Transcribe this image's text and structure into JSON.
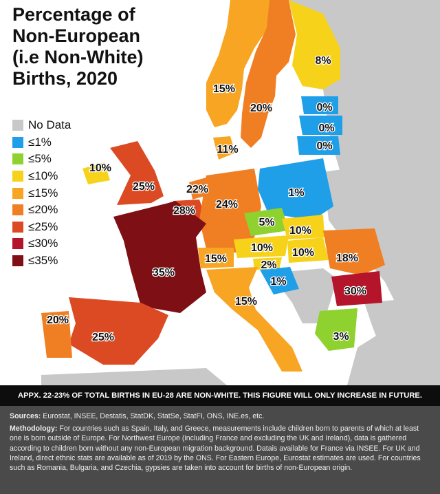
{
  "map": {
    "title_lines": [
      "Percentage of",
      "Non-European",
      "(i.e Non-White)",
      "Births, 2020"
    ],
    "legend": [
      {
        "label": "No Data",
        "color": "#c8c8c8"
      },
      {
        "label": "≤1%",
        "color": "#1e9fe8"
      },
      {
        "label": "≤5%",
        "color": "#8fd12e"
      },
      {
        "label": "≤10%",
        "color": "#f6d21a"
      },
      {
        "label": "≤15%",
        "color": "#f7a522"
      },
      {
        "label": "≤20%",
        "color": "#f07f23"
      },
      {
        "label": "≤25%",
        "color": "#dc4a24"
      },
      {
        "label": "≤30%",
        "color": "#b5152b"
      },
      {
        "label": "≤35%",
        "color": "#7e0f14"
      }
    ],
    "value_labels": {
      "finland": "8%",
      "norway": "15%",
      "sweden": "20%",
      "estonia": "0%",
      "latvia": "0%",
      "lithuania": "0%",
      "denmark": "11%",
      "ireland": "10%",
      "uk": "25%",
      "netherlands": "22%",
      "belgium": "28%",
      "germany": "24%",
      "poland": "1%",
      "czechia": "5%",
      "slovakia": "10%",
      "austria": "10%",
      "hungary": "10%",
      "romania": "18%",
      "switzerland": "15%",
      "slovenia": "2%",
      "croatia": "1%",
      "bulgaria": "30%",
      "france": "35%",
      "italy": "15%",
      "greece": "3%",
      "portugal": "20%",
      "spain": "25%"
    }
  },
  "banner": "APPX. 22-23% OF TOTAL BIRTHS IN EU-28 ARE NON-WHITE. THIS FIGURE WILL ONLY INCREASE IN FUTURE.",
  "footer": {
    "sources_label": "Sources:",
    "sources_text": " Eurostat, INSEE, Destatis, StatDK, StatSe, StatFI, ONS, INE.es, etc.",
    "methodology_label": "Methodology:",
    "methodology_text": " For countries such as Spain, Italy, and Greece, measurements include children born to parents of which at least one is born outside of Europe. For Northwest Europe (including France and excluding the UK and Ireland), data is gathered according to children born without any non-European migration background. Datais available for France via INSEE. For UK and Ireland, direct ethnic stats are available as of 2019 by the ONS. For Eastern Europe, Eurostat estimates are used. For countries such as Romania, Bulgaria, and Czechia, gypsies are taken into account for births of non-European origin."
  }
}
